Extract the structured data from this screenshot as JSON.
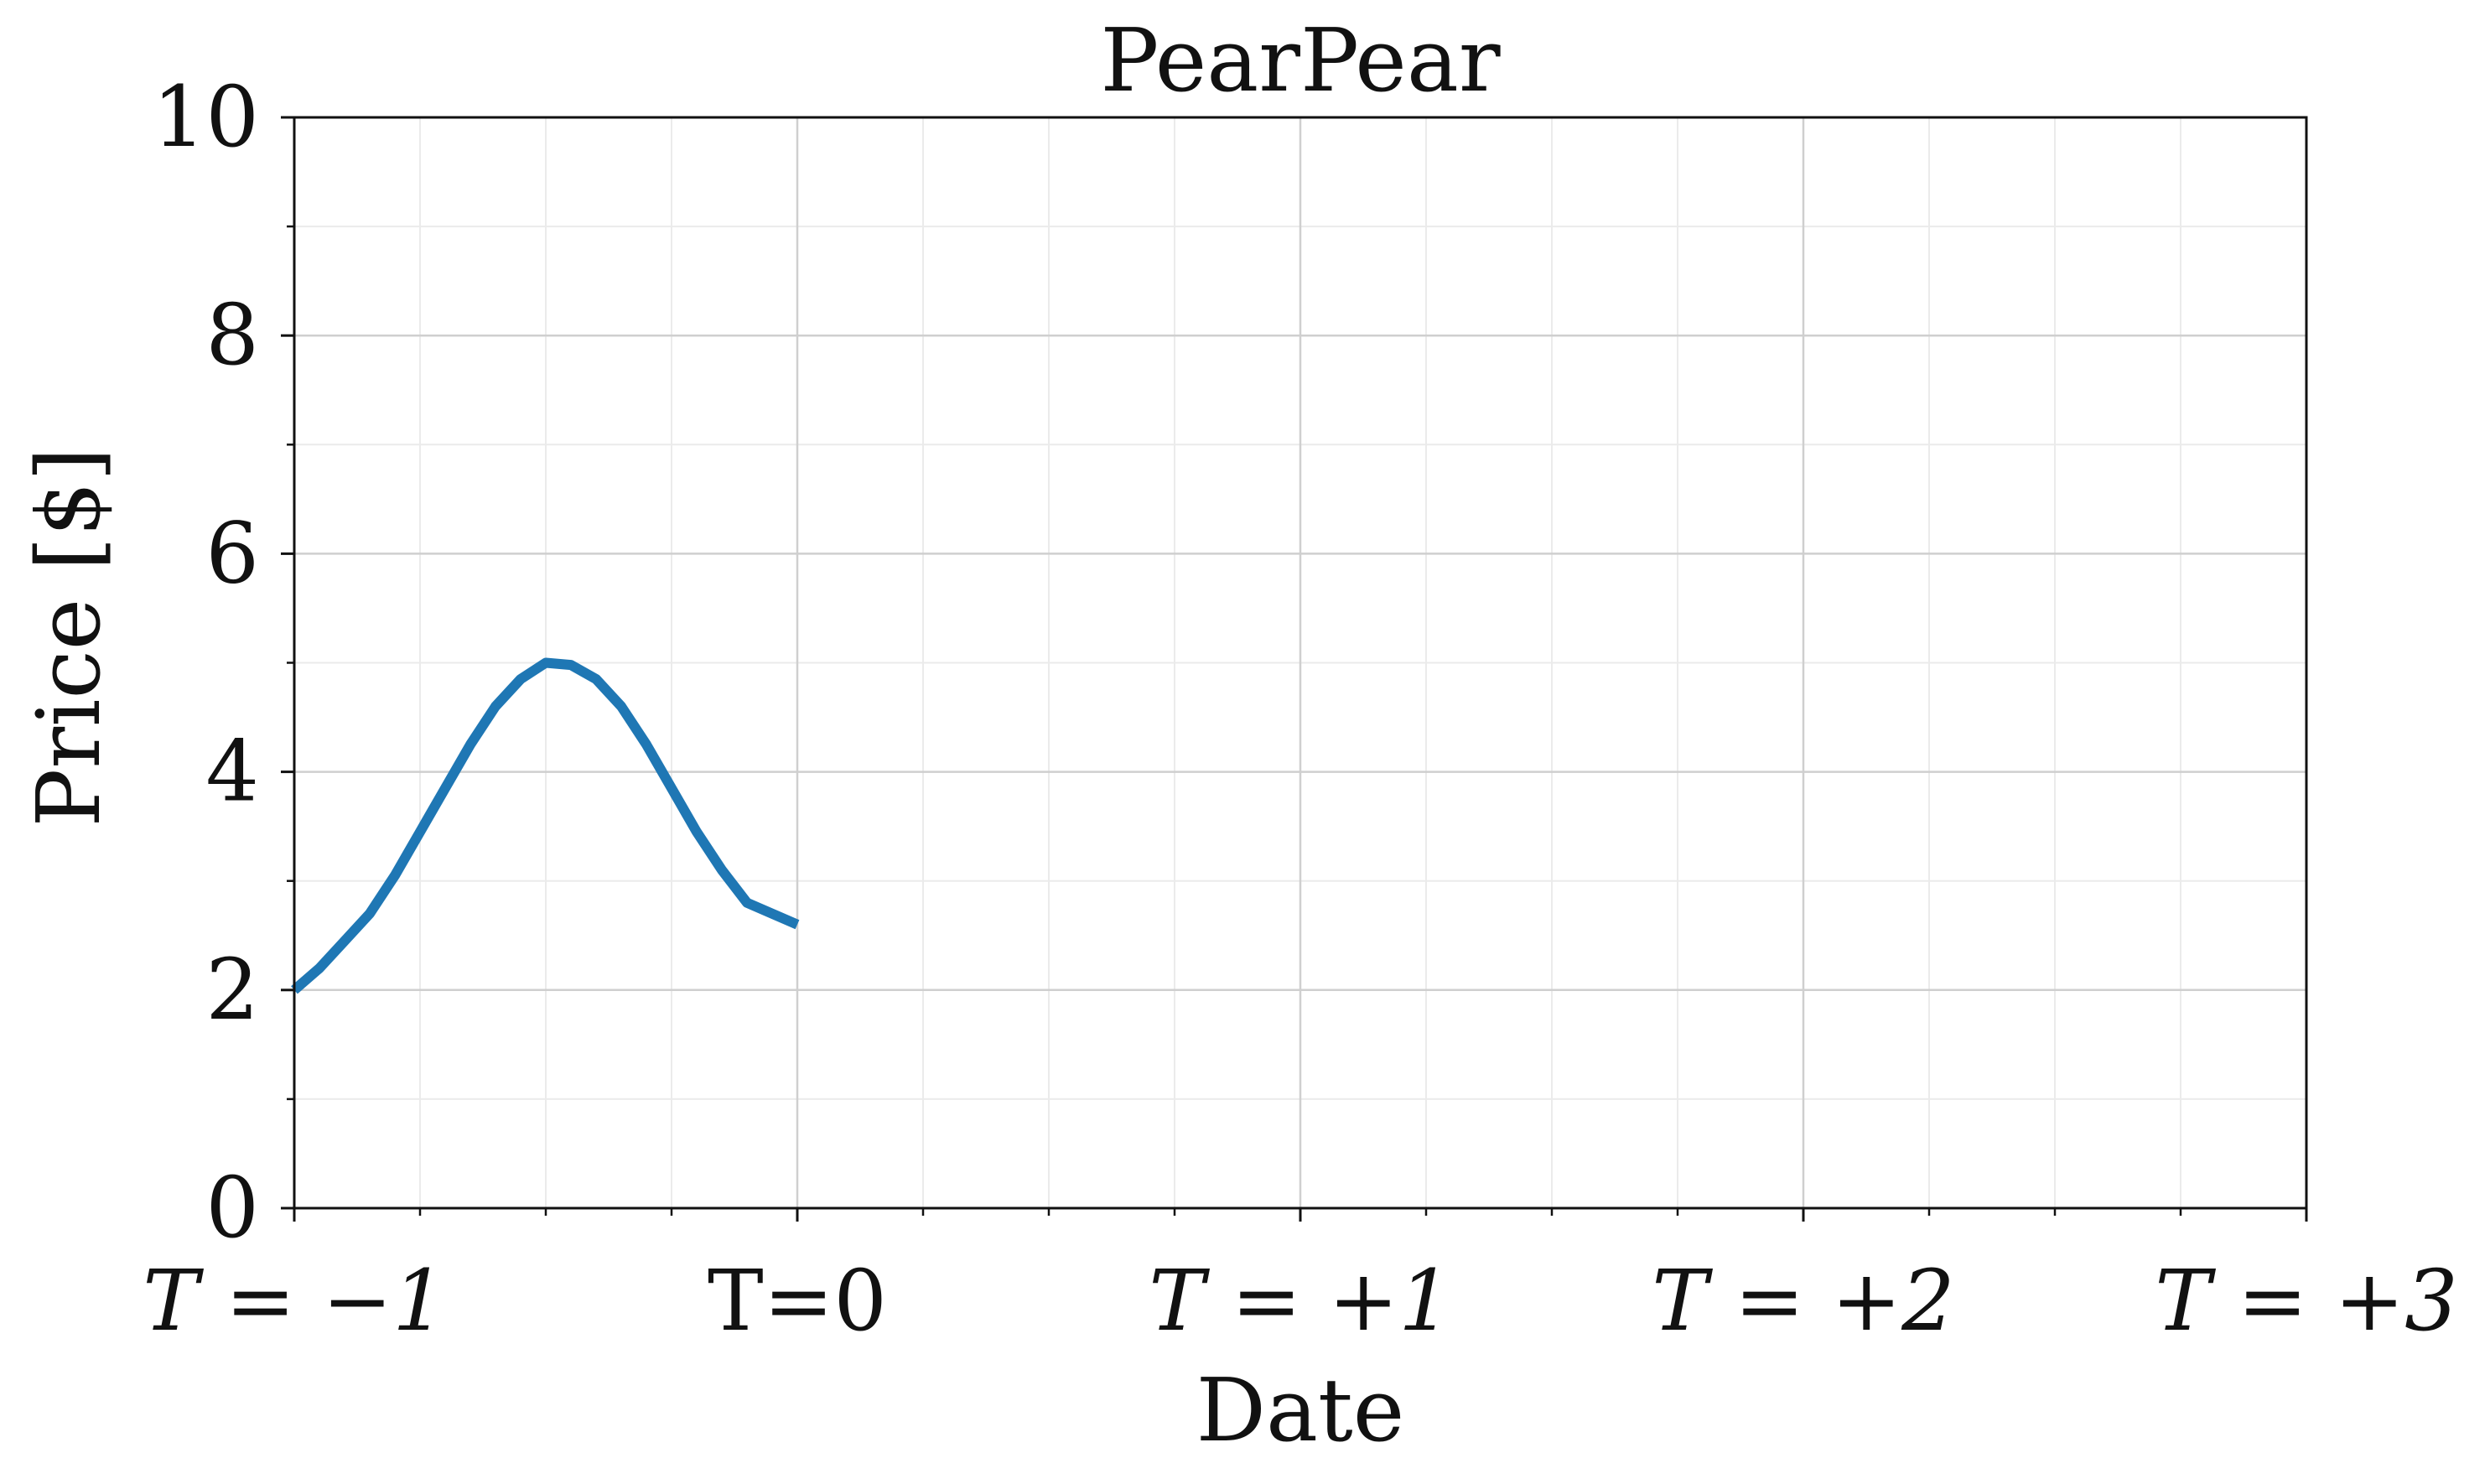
{
  "chart_data": {
    "type": "line",
    "title": "PearPear",
    "xlabel": "Date",
    "ylabel": "Price [$]",
    "xlim": [
      -1,
      3
    ],
    "ylim": [
      0,
      10
    ],
    "x_ticks": [
      {
        "value": -1,
        "label": "T = −1",
        "italic": true
      },
      {
        "value": 0,
        "label": "T=0",
        "italic": false
      },
      {
        "value": 1,
        "label": "T = +1",
        "italic": true
      },
      {
        "value": 2,
        "label": "T = +2",
        "italic": true
      },
      {
        "value": 3,
        "label": "T = +3",
        "italic": true
      }
    ],
    "y_ticks": [
      0,
      2,
      4,
      6,
      8,
      10
    ],
    "grid": true,
    "legend": "none",
    "series": [
      {
        "color": "#1f77b4",
        "x": [
          -1.0,
          -0.95,
          -0.9,
          -0.85,
          -0.8,
          -0.75,
          -0.7,
          -0.65,
          -0.6,
          -0.55,
          -0.5,
          -0.45,
          -0.4,
          -0.35,
          -0.3,
          -0.25,
          -0.2,
          -0.15,
          -0.1,
          -0.05,
          0.0
        ],
        "y": [
          2.0,
          2.2,
          2.45,
          2.7,
          3.05,
          3.45,
          3.85,
          4.25,
          4.6,
          4.85,
          5.0,
          4.98,
          4.85,
          4.6,
          4.25,
          3.85,
          3.45,
          3.1,
          2.8,
          2.7,
          2.6
        ]
      }
    ]
  }
}
